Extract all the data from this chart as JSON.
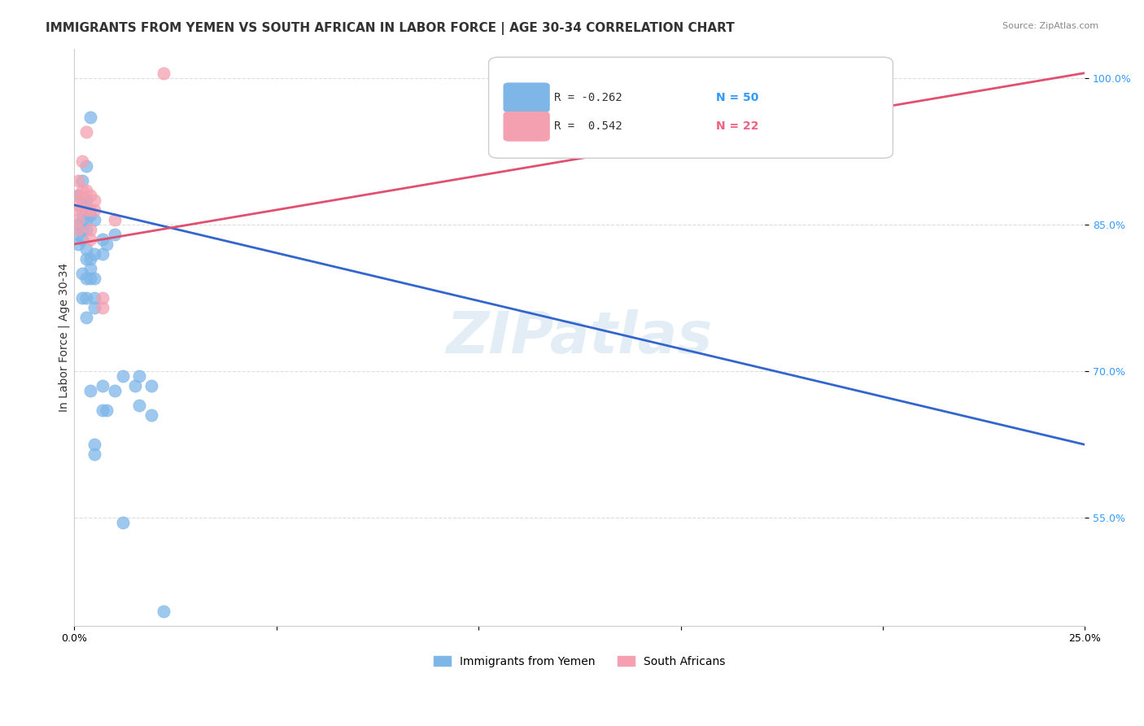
{
  "title": "IMMIGRANTS FROM YEMEN VS SOUTH AFRICAN IN LABOR FORCE | AGE 30-34 CORRELATION CHART",
  "source": "Source: ZipAtlas.com",
  "ylabel": "In Labor Force | Age 30-34",
  "ytick_labels": [
    "100.0%",
    "85.0%",
    "70.0%",
    "55.0%"
  ],
  "ytick_values": [
    1.0,
    0.85,
    0.7,
    0.55
  ],
  "xlim": [
    0.0,
    0.25
  ],
  "ylim": [
    0.44,
    1.03
  ],
  "legend_blue_R": "R = -0.262",
  "legend_blue_N": "N = 50",
  "legend_pink_R": "R =  0.542",
  "legend_pink_N": "N = 22",
  "blue_color": "#7EB6E8",
  "pink_color": "#F4A0B0",
  "line_blue_color": "#3366CC",
  "line_pink_color": "#E05070",
  "watermark": "ZIPatlas",
  "blue_points": [
    [
      0.001,
      0.88
    ],
    [
      0.001,
      0.85
    ],
    [
      0.001,
      0.84
    ],
    [
      0.001,
      0.83
    ],
    [
      0.002,
      0.895
    ],
    [
      0.002,
      0.875
    ],
    [
      0.002,
      0.865
    ],
    [
      0.002,
      0.855
    ],
    [
      0.002,
      0.845
    ],
    [
      0.002,
      0.835
    ],
    [
      0.002,
      0.8
    ],
    [
      0.002,
      0.775
    ],
    [
      0.003,
      0.91
    ],
    [
      0.003,
      0.875
    ],
    [
      0.003,
      0.855
    ],
    [
      0.003,
      0.845
    ],
    [
      0.003,
      0.825
    ],
    [
      0.003,
      0.815
    ],
    [
      0.003,
      0.795
    ],
    [
      0.003,
      0.775
    ],
    [
      0.003,
      0.755
    ],
    [
      0.004,
      0.96
    ],
    [
      0.004,
      0.86
    ],
    [
      0.004,
      0.815
    ],
    [
      0.004,
      0.805
    ],
    [
      0.004,
      0.795
    ],
    [
      0.004,
      0.68
    ],
    [
      0.005,
      0.855
    ],
    [
      0.005,
      0.82
    ],
    [
      0.005,
      0.795
    ],
    [
      0.005,
      0.775
    ],
    [
      0.005,
      0.765
    ],
    [
      0.005,
      0.625
    ],
    [
      0.005,
      0.615
    ],
    [
      0.007,
      0.835
    ],
    [
      0.007,
      0.82
    ],
    [
      0.007,
      0.685
    ],
    [
      0.007,
      0.66
    ],
    [
      0.008,
      0.83
    ],
    [
      0.008,
      0.66
    ],
    [
      0.01,
      0.84
    ],
    [
      0.01,
      0.68
    ],
    [
      0.012,
      0.695
    ],
    [
      0.012,
      0.545
    ],
    [
      0.015,
      0.685
    ],
    [
      0.016,
      0.695
    ],
    [
      0.016,
      0.665
    ],
    [
      0.019,
      0.685
    ],
    [
      0.019,
      0.655
    ],
    [
      0.022,
      0.455
    ]
  ],
  "pink_points": [
    [
      0.001,
      0.895
    ],
    [
      0.001,
      0.88
    ],
    [
      0.001,
      0.87
    ],
    [
      0.001,
      0.865
    ],
    [
      0.001,
      0.855
    ],
    [
      0.001,
      0.845
    ],
    [
      0.002,
      0.915
    ],
    [
      0.002,
      0.885
    ],
    [
      0.002,
      0.875
    ],
    [
      0.003,
      0.945
    ],
    [
      0.003,
      0.885
    ],
    [
      0.003,
      0.865
    ],
    [
      0.004,
      0.88
    ],
    [
      0.004,
      0.865
    ],
    [
      0.004,
      0.845
    ],
    [
      0.004,
      0.835
    ],
    [
      0.005,
      0.875
    ],
    [
      0.005,
      0.865
    ],
    [
      0.007,
      0.775
    ],
    [
      0.007,
      0.765
    ],
    [
      0.01,
      0.855
    ],
    [
      0.022,
      1.005
    ]
  ],
  "blue_line_x": [
    0.0,
    0.25
  ],
  "blue_line_y": [
    0.87,
    0.625
  ],
  "pink_line_x": [
    0.0,
    0.25
  ],
  "pink_line_y": [
    0.83,
    1.005
  ],
  "grid_color": "#DDDDDD",
  "background_color": "#FFFFFF",
  "title_fontsize": 11,
  "axis_label_fontsize": 10,
  "tick_fontsize": 9,
  "marker_size": 120
}
